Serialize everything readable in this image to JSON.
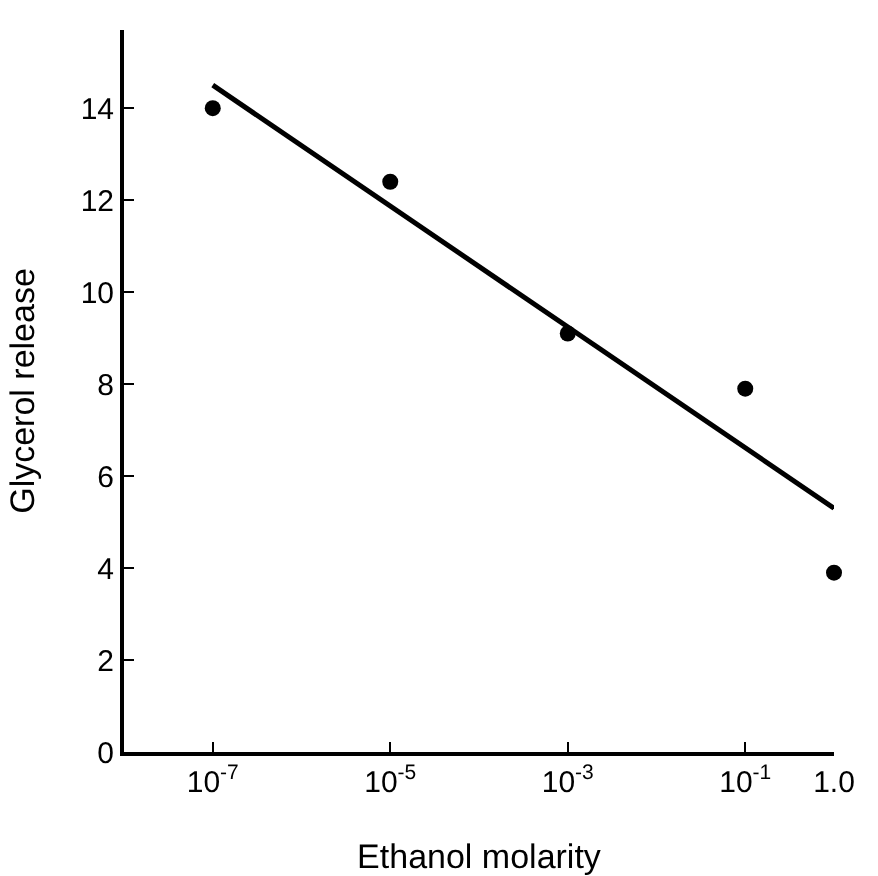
{
  "chart_data": {
    "type": "scatter",
    "xlabel": "Ethanol molarity",
    "ylabel": "Glycerol release",
    "log": "x",
    "grid": false,
    "marker": "circle",
    "xlim": [
      1e-08,
      1
    ],
    "ylim": [
      0,
      15.7
    ],
    "xticks": [
      {
        "value": 1e-07,
        "label": "10$^{-7}$"
      },
      {
        "value": 1e-05,
        "label": "10$^{-5}$"
      },
      {
        "value": 0.001,
        "label": "10$^{-3}$"
      },
      {
        "value": 0.1,
        "label": "10$^{-1}$"
      },
      {
        "value": 1,
        "label": "1.0"
      }
    ],
    "yticks": [
      0,
      2,
      4,
      6,
      8,
      10,
      12,
      14
    ],
    "series": [
      {
        "color": "#000000",
        "x": [
          1e-07,
          1e-05,
          0.001,
          0.1,
          1
        ],
        "values": [
          14.0,
          12.4,
          9.1,
          7.9,
          3.9
        ]
      },
      {
        "type": "line",
        "color": "#000000",
        "line_style": "solid",
        "marker": "none",
        "x": [
          1e-07,
          1
        ],
        "values": [
          14.5,
          5.3
        ]
      }
    ]
  }
}
